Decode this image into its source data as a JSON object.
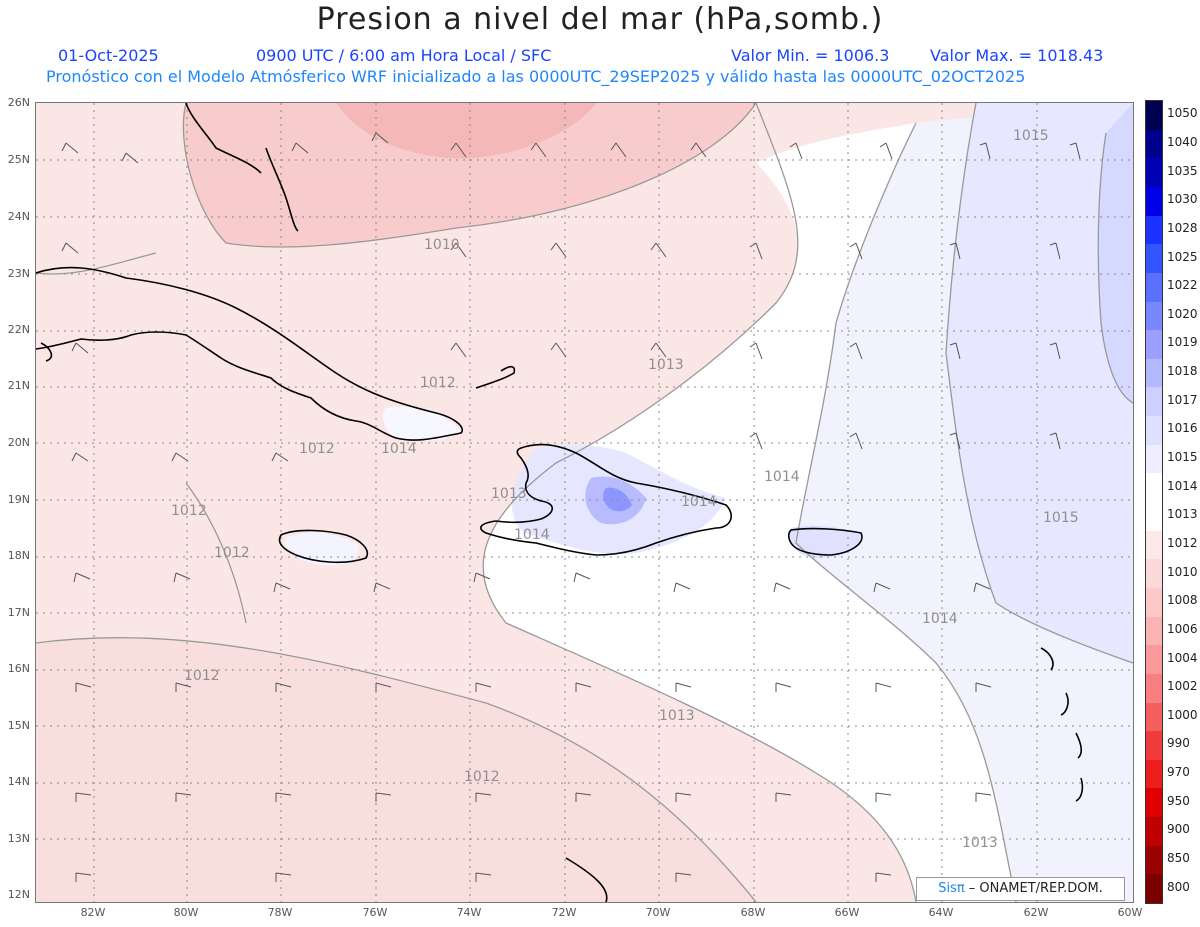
{
  "header": {
    "title": "Presion a nivel del mar (hPa,somb.)",
    "date": "01-Oct-2025",
    "time_line": "0900 UTC / 6:00 am Hora Local / SFC",
    "min_value": "Valor Min. = 1006.3",
    "max_value": "Valor Max. = 1018.43",
    "model_line": "Pronóstico con el Modelo Atmósferico WRF inicializado a las 0000UTC_29SEP2025 y válido hasta las  0000UTC_02OCT2025"
  },
  "axes": {
    "lat_labels": [
      "26N",
      "25N",
      "24N",
      "23N",
      "22N",
      "21N",
      "20N",
      "19N",
      "18N",
      "17N",
      "16N",
      "15N",
      "14N",
      "13N",
      "12N"
    ],
    "lon_labels": [
      "82W",
      "80W",
      "78W",
      "76W",
      "74W",
      "72W",
      "70W",
      "68W",
      "66W",
      "64W",
      "62W",
      "60W"
    ]
  },
  "legend": {
    "levels": [
      "1050",
      "1040",
      "1035",
      "1030",
      "1028",
      "1025",
      "1022",
      "1020",
      "1019",
      "1018",
      "1017",
      "1016",
      "1015",
      "1014",
      "1013",
      "1012",
      "1010",
      "1008",
      "1006",
      "1004",
      "1002",
      "1000",
      "990",
      "970",
      "950",
      "900",
      "850",
      "800"
    ],
    "colors": [
      "#000050",
      "#00008c",
      "#0000b4",
      "#0000e6",
      "#1a33ff",
      "#3355ff",
      "#5a70ff",
      "#7a88ff",
      "#9aa0ff",
      "#b4b8ff",
      "#ccd0ff",
      "#dde0ff",
      "#eeeeff",
      "#ffffff",
      "#ffffff",
      "#fde8e8",
      "#fdd8d8",
      "#fcc8c8",
      "#fbb4b4",
      "#fa9a9a",
      "#f77f7f",
      "#f45f5f",
      "#f03c3c",
      "#ec1e1e",
      "#e00000",
      "#bf0000",
      "#990000",
      "#7a0000"
    ]
  },
  "isobars": [
    {
      "label": "1010"
    },
    {
      "label": "1012"
    },
    {
      "label": "1012"
    },
    {
      "label": "1012"
    },
    {
      "label": "1012"
    },
    {
      "label": "1012"
    },
    {
      "label": "1012"
    },
    {
      "label": "1013"
    },
    {
      "label": "1013"
    },
    {
      "label": "1013"
    },
    {
      "label": "1013"
    },
    {
      "label": "1014"
    },
    {
      "label": "1014"
    },
    {
      "label": "1014"
    },
    {
      "label": "1014"
    },
    {
      "label": "1014"
    },
    {
      "label": "1015"
    },
    {
      "label": "1015"
    }
  ],
  "credit": {
    "brand": "Sisπ",
    "org": " – ONAMET/REP.DOM."
  }
}
